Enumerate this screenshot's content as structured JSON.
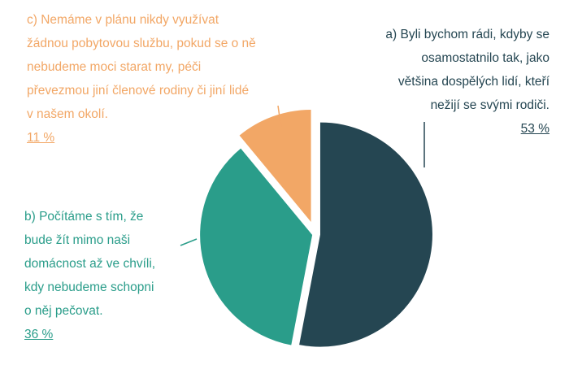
{
  "chart_data": {
    "type": "pie",
    "categories": [
      "a) Byli bychom rádi, kdyby se\nosamostatnilo tak, jako\nvětšina dospělých lidí, kteří\nnežijí se svými rodiči.",
      "b) Počítáme s tím, že\nbude žít mimo naši\ndomácnost až ve chvíli,\nkdy nebudeme schopni\no něj pečovat.",
      "c) Nemáme v plánu nikdy využívat\nžádnou pobytovou službu, pokud se o ně\nnebudeme moci starat my, péči\npřevezmou jiní členové rodiny či jiní lidé\nv našem okolí."
    ],
    "values": [
      53,
      36,
      11
    ],
    "value_labels": [
      "53 %",
      "36 %",
      "11 %"
    ],
    "colors": [
      "#254652",
      "#2a9d8a",
      "#f2a766"
    ]
  }
}
